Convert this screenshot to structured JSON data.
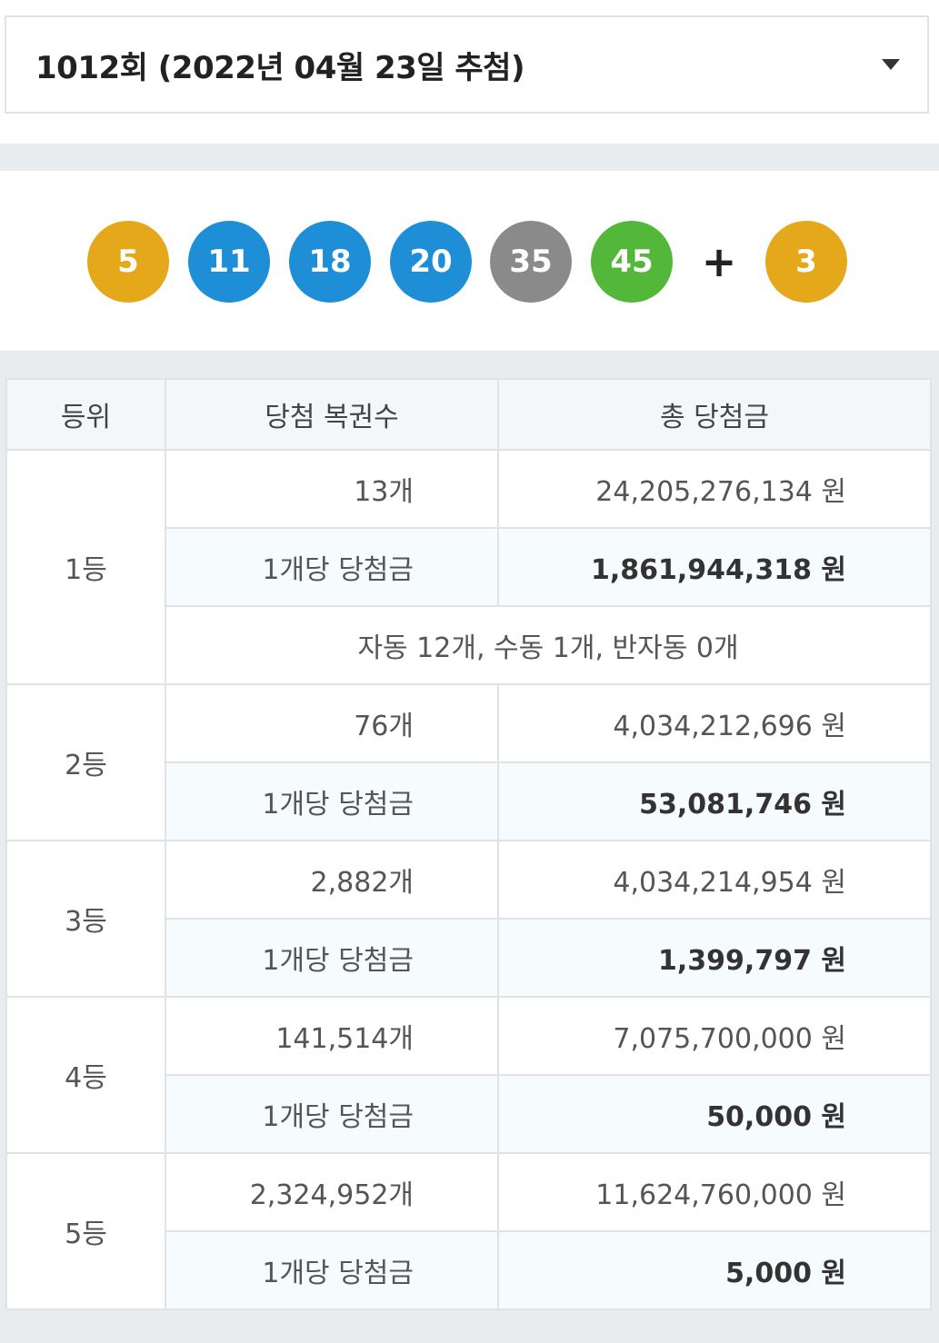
{
  "draw_select": {
    "label": "1012회 (2022년 04월 23일 추첨)"
  },
  "balls": [
    {
      "number": "5",
      "color": "#e5a81b"
    },
    {
      "number": "11",
      "color": "#1e8fd6"
    },
    {
      "number": "18",
      "color": "#1e8fd6"
    },
    {
      "number": "20",
      "color": "#1e8fd6"
    },
    {
      "number": "35",
      "color": "#8a8a8a"
    },
    {
      "number": "45",
      "color": "#53b83a"
    }
  ],
  "plus": "+",
  "bonus_ball": {
    "number": "3",
    "color": "#e5a81b"
  },
  "table": {
    "headers": [
      "등위",
      "당첨 복권수",
      "총 당첨금"
    ],
    "per_label": "1개당 당첨금",
    "ranks": [
      {
        "rank": "1등",
        "count": "13개",
        "total": "24,205,276,134 원",
        "per_amount": "1,861,944,318 원",
        "note": "자동 12개, 수동 1개, 반자동 0개"
      },
      {
        "rank": "2등",
        "count": "76개",
        "total": "4,034,212,696 원",
        "per_amount": "53,081,746 원"
      },
      {
        "rank": "3등",
        "count": "2,882개",
        "total": "4,034,214,954 원",
        "per_amount": "1,399,797 원"
      },
      {
        "rank": "4등",
        "count": "141,514개",
        "total": "7,075,700,000 원",
        "per_amount": "50,000 원"
      },
      {
        "rank": "5등",
        "count": "2,324,952개",
        "total": "11,624,760,000 원",
        "per_amount": "5,000 원"
      }
    ]
  }
}
